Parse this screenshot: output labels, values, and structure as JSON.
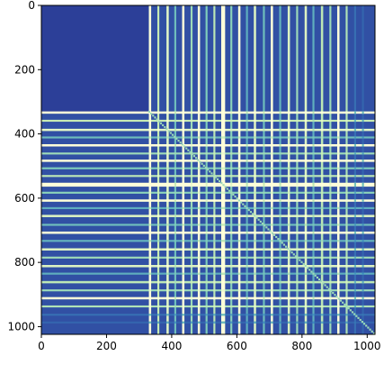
{
  "chart_data": {
    "type": "heatmap",
    "title": "",
    "xlabel": "",
    "ylabel": "",
    "x_range": [
      0,
      1024
    ],
    "y_range": [
      1024,
      0
    ],
    "xticks": [
      0,
      200,
      400,
      600,
      800,
      1000
    ],
    "yticks": [
      0,
      200,
      400,
      600,
      800,
      1000
    ],
    "y_axis_inverted": true,
    "symmetric": true,
    "colormap": "YlGnBu",
    "colors": {
      "low": "#2c3f98",
      "low_alt": "#3150a4",
      "mid": "#3f8fc0",
      "bright": "#c8ecb4",
      "peak": "#ffffd9",
      "high_off_block": "#4aa9c2"
    },
    "background_block": {
      "start": 0,
      "end": 328,
      "level": 0.06
    },
    "bright_lines": [
      {
        "pos": 330,
        "width": 7,
        "level": 1.0
      },
      {
        "pos": 356,
        "width": 6,
        "level": 0.92
      },
      {
        "pos": 384,
        "width": 7,
        "level": 0.96
      },
      {
        "pos": 408,
        "width": 6,
        "level": 0.75
      },
      {
        "pos": 432,
        "width": 7,
        "level": 1.0
      },
      {
        "pos": 458,
        "width": 6,
        "level": 0.85
      },
      {
        "pos": 480,
        "width": 7,
        "level": 1.0
      },
      {
        "pos": 504,
        "width": 6,
        "level": 0.8
      },
      {
        "pos": 528,
        "width": 6,
        "level": 0.9
      },
      {
        "pos": 552,
        "width": 12,
        "level": 1.0
      },
      {
        "pos": 580,
        "width": 6,
        "level": 0.82
      },
      {
        "pos": 604,
        "width": 7,
        "level": 1.0
      },
      {
        "pos": 628,
        "width": 6,
        "level": 0.7
      },
      {
        "pos": 652,
        "width": 7,
        "level": 0.95
      },
      {
        "pos": 680,
        "width": 6,
        "level": 0.75
      },
      {
        "pos": 704,
        "width": 7,
        "level": 1.0
      },
      {
        "pos": 730,
        "width": 6,
        "level": 0.72
      },
      {
        "pos": 756,
        "width": 7,
        "level": 0.95
      },
      {
        "pos": 782,
        "width": 6,
        "level": 0.85
      },
      {
        "pos": 808,
        "width": 7,
        "level": 0.95
      },
      {
        "pos": 832,
        "width": 6,
        "level": 0.7
      },
      {
        "pos": 858,
        "width": 7,
        "level": 0.9
      },
      {
        "pos": 884,
        "width": 6,
        "level": 0.85
      },
      {
        "pos": 908,
        "width": 7,
        "level": 1.0
      },
      {
        "pos": 934,
        "width": 6,
        "level": 0.88
      },
      {
        "pos": 960,
        "width": 6,
        "level": 0.45
      },
      {
        "pos": 984,
        "width": 6,
        "level": 0.4
      }
    ]
  }
}
